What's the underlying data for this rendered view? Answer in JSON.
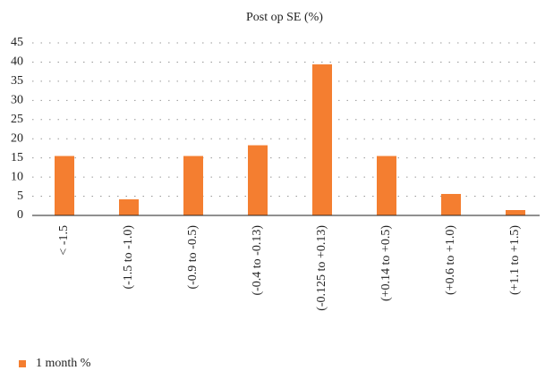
{
  "chart_data": {
    "type": "bar",
    "title": "Post op SE (%)",
    "categories": [
      "< -1.5",
      "(-1.5 to -1.0)",
      "(-0.9 to -0.5)",
      "(-0.4 to -0.13)",
      "(-0.125 to +0.13)",
      "(+0.14 to +0.5)",
      "(+0.6 to +1.0)",
      "(+1.1 to +1.5)"
    ],
    "series": [
      {
        "name": "1 month %",
        "color": "#f47e30",
        "values": [
          15.5,
          4.2,
          15.5,
          18.3,
          39.4,
          15.5,
          5.6,
          1.4
        ]
      }
    ],
    "ylim": [
      0,
      45
    ],
    "yticks": [
      0,
      5,
      10,
      15,
      20,
      25,
      30,
      35,
      40,
      45
    ],
    "grid": true,
    "legend": "bottom-left"
  }
}
